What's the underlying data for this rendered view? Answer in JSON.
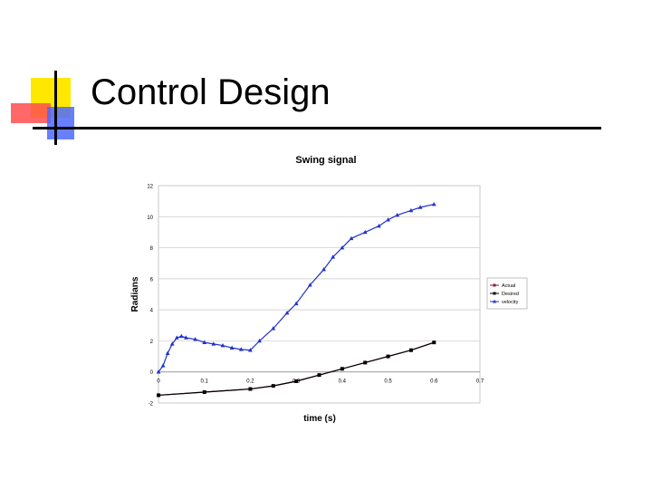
{
  "slide": {
    "title": "Control Design"
  },
  "chart_data": {
    "type": "line",
    "title": "Swing signal",
    "xlabel": "time (s)",
    "ylabel": "Radians",
    "xlim": [
      0,
      0.7
    ],
    "ylim": [
      -2,
      12
    ],
    "xticks": [
      0,
      0.1,
      0.2,
      0.3,
      0.4,
      0.5,
      0.6,
      0.7
    ],
    "xtick_labels": [
      "0",
      "0.1",
      "0.2",
      "0.3",
      "0.4",
      "0.5",
      "0.6",
      "0.7"
    ],
    "yticks": [
      -2,
      0,
      2,
      4,
      6,
      8,
      10,
      12
    ],
    "ytick_labels": [
      "-2",
      "0",
      "2",
      "4",
      "6",
      "8",
      "10",
      "12"
    ],
    "grid": "horizontal",
    "legend_position": "right",
    "series": [
      {
        "name": "Actual",
        "color": "#8b1a4a",
        "marker": "square",
        "x": [
          0,
          0.1,
          0.2,
          0.25,
          0.3,
          0.35,
          0.4,
          0.45,
          0.5,
          0.55,
          0.6
        ],
        "y": [
          -1.5,
          -1.3,
          -1.1,
          -0.9,
          -0.6,
          -0.2,
          0.2,
          0.6,
          1.0,
          1.4,
          1.9
        ]
      },
      {
        "name": "Desired",
        "color": "#000000",
        "marker": "square",
        "x": [
          0,
          0.1,
          0.2,
          0.25,
          0.3,
          0.35,
          0.4,
          0.45,
          0.5,
          0.55,
          0.6
        ],
        "y": [
          -1.5,
          -1.3,
          -1.1,
          -0.9,
          -0.6,
          -0.2,
          0.2,
          0.6,
          1.0,
          1.4,
          1.9
        ]
      },
      {
        "name": "velocity",
        "color": "#2233cc",
        "marker": "triangle",
        "x": [
          0,
          0.01,
          0.02,
          0.03,
          0.04,
          0.05,
          0.06,
          0.08,
          0.1,
          0.12,
          0.14,
          0.16,
          0.18,
          0.2,
          0.22,
          0.25,
          0.28,
          0.3,
          0.33,
          0.36,
          0.38,
          0.4,
          0.42,
          0.45,
          0.48,
          0.5,
          0.52,
          0.55,
          0.57,
          0.6
        ],
        "y": [
          0,
          0.4,
          1.2,
          1.8,
          2.2,
          2.3,
          2.2,
          2.1,
          1.9,
          1.8,
          1.7,
          1.55,
          1.45,
          1.4,
          2.0,
          2.8,
          3.8,
          4.4,
          5.6,
          6.6,
          7.4,
          8.0,
          8.6,
          9.0,
          9.4,
          9.8,
          10.1,
          10.4,
          10.6,
          10.8
        ]
      }
    ]
  }
}
